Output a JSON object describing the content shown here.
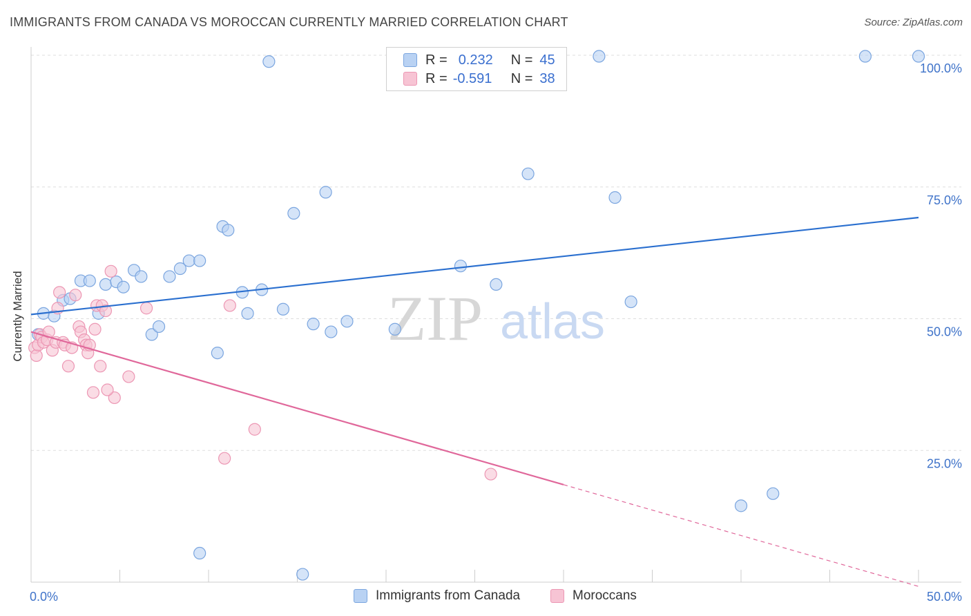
{
  "title": "IMMIGRANTS FROM CANADA VS MOROCCAN CURRENTLY MARRIED CORRELATION CHART",
  "source": "Source: ZipAtlas.com",
  "watermark": {
    "zip": "ZIP",
    "atlas": "atlas"
  },
  "legend": {
    "r_label": "R =",
    "n_label": "N =",
    "rows": [
      {
        "r": "0.232",
        "n": "45"
      },
      {
        "r": "-0.591",
        "n": "38"
      }
    ]
  },
  "chart_data": {
    "type": "scatter",
    "ylabel": "Currently Married",
    "xlim": [
      0,
      50
    ],
    "ylim": [
      0,
      100
    ],
    "x_tick_labels": [
      {
        "x": 0,
        "label": "0.0%"
      },
      {
        "x": 50,
        "label": "50.0%"
      }
    ],
    "y_tick_labels": [
      {
        "y": 25,
        "label": "25.0%"
      },
      {
        "y": 50,
        "label": "50.0%"
      },
      {
        "y": 75,
        "label": "75.0%"
      },
      {
        "y": 100,
        "label": "100.0%"
      }
    ],
    "grid": true,
    "legend_position": "top-center",
    "colors": {
      "canada_fill": "#b9d2f3",
      "canada_stroke": "#7aa5df",
      "canada_line": "#2a6fcf",
      "moroccan_fill": "#f7c4d4",
      "moroccan_stroke": "#ec96b3",
      "moroccan_line": "#e0679a",
      "tick_text": "#3f73c9",
      "grid": "#dddddd"
    },
    "series": [
      {
        "name": "Immigrants from Canada",
        "points": [
          [
            0.4,
            47.0
          ],
          [
            0.7,
            51.0
          ],
          [
            1.3,
            50.5
          ],
          [
            1.8,
            53.5
          ],
          [
            2.2,
            53.8
          ],
          [
            2.8,
            57.2
          ],
          [
            3.3,
            57.2
          ],
          [
            3.8,
            51.0
          ],
          [
            4.2,
            56.5
          ],
          [
            4.8,
            57.0
          ],
          [
            5.2,
            56.0
          ],
          [
            5.8,
            59.2
          ],
          [
            6.2,
            58.0
          ],
          [
            6.8,
            47.0
          ],
          [
            7.2,
            48.5
          ],
          [
            7.8,
            58.0
          ],
          [
            8.4,
            59.5
          ],
          [
            8.9,
            61.0
          ],
          [
            9.5,
            61.0
          ],
          [
            10.5,
            43.5
          ],
          [
            10.8,
            67.5
          ],
          [
            11.1,
            66.8
          ],
          [
            11.9,
            55.0
          ],
          [
            12.2,
            51.0
          ],
          [
            13.0,
            55.5
          ],
          [
            13.4,
            98.8
          ],
          [
            14.2,
            51.8
          ],
          [
            14.8,
            70.0
          ],
          [
            15.3,
            1.5
          ],
          [
            15.9,
            49.0
          ],
          [
            16.6,
            74.0
          ],
          [
            16.9,
            47.5
          ],
          [
            17.8,
            49.5
          ],
          [
            20.5,
            48.0
          ],
          [
            24.2,
            60.0
          ],
          [
            26.2,
            56.5
          ],
          [
            28.0,
            77.5
          ],
          [
            32.0,
            99.8
          ],
          [
            32.9,
            73.0
          ],
          [
            33.8,
            53.2
          ],
          [
            40.0,
            14.5
          ],
          [
            41.8,
            16.8
          ],
          [
            47.0,
            99.8
          ],
          [
            50.0,
            99.8
          ],
          [
            9.5,
            5.5
          ]
        ]
      },
      {
        "name": "Moroccans",
        "points": [
          [
            0.2,
            44.5
          ],
          [
            0.3,
            43.0
          ],
          [
            0.4,
            45.0
          ],
          [
            0.5,
            47.0
          ],
          [
            0.6,
            46.5
          ],
          [
            0.7,
            45.5
          ],
          [
            0.9,
            46.0
          ],
          [
            1.0,
            47.5
          ],
          [
            1.2,
            44.0
          ],
          [
            1.4,
            45.5
          ],
          [
            1.5,
            52.0
          ],
          [
            1.6,
            55.0
          ],
          [
            1.8,
            45.5
          ],
          [
            1.9,
            45.0
          ],
          [
            2.1,
            41.0
          ],
          [
            2.3,
            44.5
          ],
          [
            2.5,
            54.5
          ],
          [
            2.7,
            48.5
          ],
          [
            2.8,
            47.5
          ],
          [
            3.0,
            46.0
          ],
          [
            3.1,
            45.0
          ],
          [
            3.2,
            43.5
          ],
          [
            3.3,
            45.0
          ],
          [
            3.5,
            36.0
          ],
          [
            3.6,
            48.0
          ],
          [
            3.7,
            52.5
          ],
          [
            3.9,
            41.0
          ],
          [
            4.0,
            52.5
          ],
          [
            4.2,
            51.5
          ],
          [
            4.5,
            59.0
          ],
          [
            4.7,
            35.0
          ],
          [
            5.5,
            39.0
          ],
          [
            6.5,
            52.0
          ],
          [
            10.9,
            23.5
          ],
          [
            11.2,
            52.5
          ],
          [
            12.6,
            29.0
          ],
          [
            25.9,
            20.5
          ],
          [
            4.3,
            36.5
          ]
        ]
      }
    ],
    "trend_lines": [
      {
        "series": "Immigrants from Canada",
        "x": [
          0,
          50
        ],
        "y": [
          50.8,
          69.2
        ]
      },
      {
        "series": "Moroccans",
        "x": [
          0,
          30
        ],
        "y": [
          47.5,
          18.5
        ],
        "dashed_to": [
          50,
          -0.8
        ]
      }
    ]
  },
  "bottom_legend": [
    "Immigrants from Canada",
    "Moroccans"
  ]
}
